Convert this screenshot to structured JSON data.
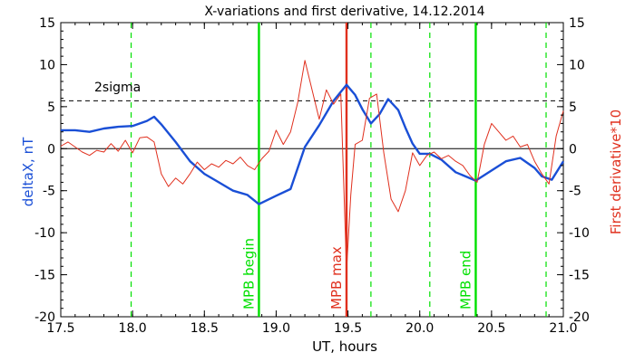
{
  "chart_data": {
    "type": "line",
    "title": "X-variations and first derivative, 14.12.2014",
    "xlabel": "UT, hours",
    "ylabel_left": "deltaX, nT",
    "ylabel_right": "First derivative*10",
    "xlim": [
      17.5,
      21.0
    ],
    "ylim": [
      -20,
      15
    ],
    "x_ticks": [
      17.5,
      18.0,
      18.5,
      19.0,
      19.5,
      20.0,
      20.5,
      21.0
    ],
    "x_tick_labels": [
      "17.5",
      "18.0",
      "18.5",
      "19.0",
      "19.5",
      "20.0",
      "20.5",
      "21.0"
    ],
    "y_ticks": [
      -20,
      -15,
      -10,
      -5,
      0,
      5,
      10,
      15
    ],
    "y_tick_labels": [
      "-20",
      "-15",
      "-10",
      "-5",
      "0",
      "5",
      "10",
      "15"
    ],
    "colors": {
      "deltaX": "#1a4fd6",
      "derivative": "#e0301e",
      "green": "#00e000",
      "red": "#e0301e",
      "axis": "#000000"
    },
    "threshold": {
      "label": "2sigma",
      "y": 5.7
    },
    "zero_line": 0,
    "dashed_green_lines": [
      17.99,
      19.66,
      20.07,
      20.88
    ],
    "markers": [
      {
        "label": "MPB begin",
        "x": 18.88,
        "color": "#00e000"
      },
      {
        "label": "MPB max",
        "x": 19.49,
        "color": "#e0301e"
      },
      {
        "label": "MPB end",
        "x": 20.39,
        "color": "#00e000"
      }
    ],
    "series": [
      {
        "name": "deltaX",
        "color": "#1a4fd6",
        "x": [
          17.5,
          17.6,
          17.7,
          17.8,
          17.9,
          18.0,
          18.1,
          18.15,
          18.2,
          18.3,
          18.4,
          18.5,
          18.6,
          18.7,
          18.8,
          18.88,
          19.0,
          19.1,
          19.2,
          19.3,
          19.4,
          19.49,
          19.55,
          19.6,
          19.66,
          19.72,
          19.78,
          19.85,
          19.9,
          19.95,
          20.0,
          20.07,
          20.15,
          20.25,
          20.39,
          20.5,
          20.6,
          20.7,
          20.8,
          20.85,
          20.92,
          21.0
        ],
        "y": [
          2.2,
          2.2,
          2.0,
          2.4,
          2.6,
          2.7,
          3.3,
          3.8,
          2.9,
          0.8,
          -1.5,
          -3.0,
          -4.0,
          -5.0,
          -5.5,
          -6.6,
          -5.6,
          -4.8,
          0.2,
          2.8,
          5.7,
          7.6,
          6.4,
          4.7,
          3.0,
          4.1,
          5.9,
          4.6,
          2.5,
          0.6,
          -0.6,
          -0.6,
          -1.3,
          -2.8,
          -3.8,
          -2.6,
          -1.5,
          -1.1,
          -2.3,
          -3.3,
          -3.7,
          -1.5
        ]
      },
      {
        "name": "derivative*10",
        "color": "#e0301e",
        "x": [
          17.5,
          17.55,
          17.6,
          17.65,
          17.7,
          17.75,
          17.8,
          17.85,
          17.9,
          17.95,
          18.0,
          18.05,
          18.1,
          18.15,
          18.2,
          18.25,
          18.3,
          18.35,
          18.4,
          18.45,
          18.5,
          18.55,
          18.6,
          18.65,
          18.7,
          18.75,
          18.8,
          18.85,
          18.9,
          18.95,
          19.0,
          19.05,
          19.1,
          19.15,
          19.2,
          19.25,
          19.3,
          19.35,
          19.4,
          19.45,
          19.49,
          19.52,
          19.55,
          19.6,
          19.65,
          19.7,
          19.75,
          19.8,
          19.85,
          19.9,
          19.95,
          20.0,
          20.05,
          20.1,
          20.15,
          20.2,
          20.25,
          20.3,
          20.35,
          20.4,
          20.45,
          20.5,
          20.55,
          20.6,
          20.65,
          20.7,
          20.75,
          20.8,
          20.85,
          20.9,
          20.95,
          21.0
        ],
        "y": [
          0.3,
          0.8,
          0.2,
          -0.4,
          -0.8,
          -0.2,
          -0.4,
          0.6,
          -0.3,
          1.0,
          -0.5,
          1.3,
          1.4,
          0.8,
          -3.0,
          -4.5,
          -3.5,
          -4.2,
          -3.0,
          -1.6,
          -2.5,
          -1.8,
          -2.2,
          -1.4,
          -1.8,
          -1.0,
          -2.0,
          -2.5,
          -1.2,
          -0.3,
          2.2,
          0.5,
          2.0,
          5.5,
          10.5,
          7.0,
          3.5,
          7.0,
          5.3,
          6.5,
          -14.5,
          -5.5,
          0.5,
          1.0,
          6.0,
          6.5,
          -0.5,
          -6.0,
          -7.5,
          -5.0,
          -0.5,
          -2.0,
          -0.8,
          -0.4,
          -1.2,
          -0.8,
          -1.5,
          -2.0,
          -3.2,
          -4.0,
          0.5,
          3.0,
          2.0,
          1.0,
          1.5,
          0.2,
          0.5,
          -1.5,
          -3.0,
          -4.2,
          1.5,
          4.5
        ]
      }
    ]
  }
}
